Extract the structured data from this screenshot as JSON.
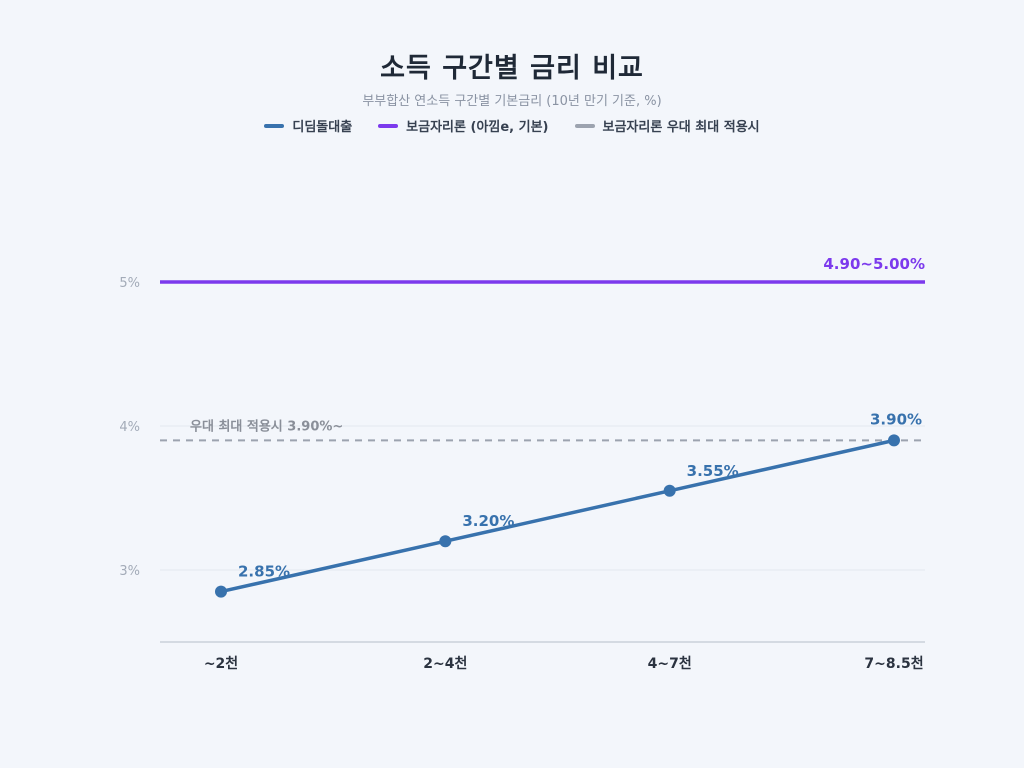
{
  "chart_data": {
    "type": "line",
    "title": "소득 구간별 금리 비교",
    "subtitle": "부부합산 연소득 구간별 기본금리 (10년 만기 기준, %)",
    "categories": [
      "~2천",
      "2~4천",
      "4~7천",
      "7~8.5천"
    ],
    "y_ticks": [
      "3%",
      "4%",
      "5%"
    ],
    "ylim": [
      2.5,
      5.5
    ],
    "legend_position": "top-center",
    "grid": true,
    "series": [
      {
        "name": "디딤돌대출",
        "color": "#3872ad",
        "values": [
          2.85,
          3.2,
          3.55,
          3.9
        ],
        "labels": [
          "2.85%",
          "3.20%",
          "3.55%",
          "3.90%"
        ]
      },
      {
        "name": "보금자리론 (아낌e, 기본)",
        "color": "#7c3aed",
        "value": 5.0,
        "label": "4.90~5.00%"
      },
      {
        "name": "보금자리론 우대 최대 적용시",
        "color": "#9ca3af",
        "value": 3.9,
        "label": "우대 최대 적용시 3.90%~",
        "style": "dashed"
      }
    ]
  }
}
